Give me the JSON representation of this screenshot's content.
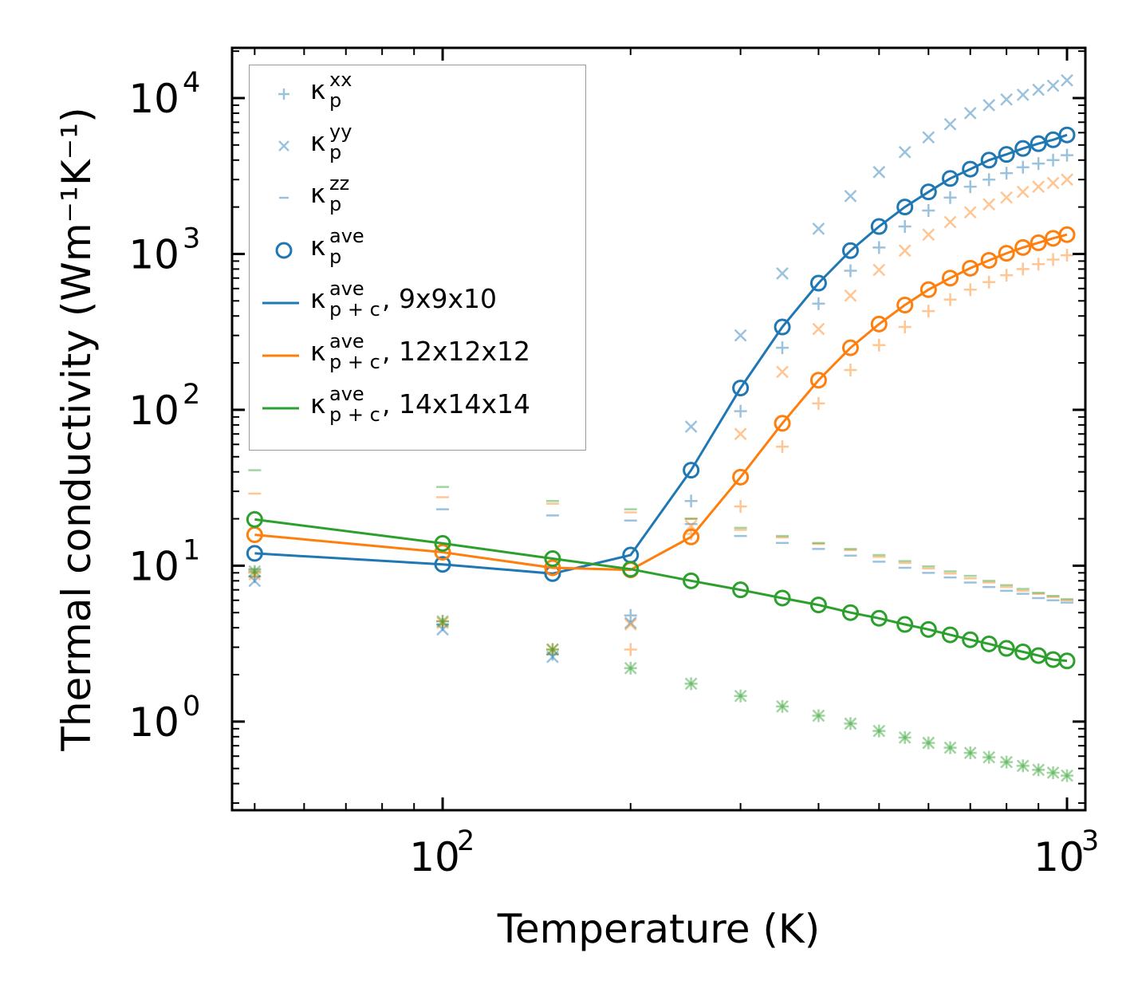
{
  "chart_data": {
    "type": "scatter",
    "xlabel": "Temperature (K)",
    "ylabel": "Thermal conductivity (Wm⁻¹K⁻¹)",
    "xscale": "log",
    "yscale": "log",
    "xlim": [
      46,
      1070
    ],
    "ylim": [
      0.27,
      21000
    ],
    "x_ticks": [
      {
        "value": 100,
        "label_base": "10",
        "label_exp": "2"
      },
      {
        "value": 1000,
        "label_base": "10",
        "label_exp": "3"
      }
    ],
    "y_ticks": [
      {
        "value": 1,
        "label_base": "10",
        "label_exp": "0"
      },
      {
        "value": 10,
        "label_base": "10",
        "label_exp": "1"
      },
      {
        "value": 100,
        "label_base": "10",
        "label_exp": "2"
      },
      {
        "value": 1000,
        "label_base": "10",
        "label_exp": "3"
      },
      {
        "value": 10000,
        "label_base": "10",
        "label_exp": "4"
      }
    ],
    "x": [
      50,
      100,
      150,
      200,
      250,
      300,
      350,
      400,
      450,
      500,
      550,
      600,
      650,
      700,
      750,
      800,
      850,
      900,
      950,
      1000
    ],
    "legend_position": "upper-left",
    "groups": [
      {
        "name": "9x9x10",
        "color": "#1f77b4",
        "kappa_xx": [
          8.5,
          4.2,
          2.7,
          4.8,
          26,
          98,
          250,
          480,
          780,
          1100,
          1500,
          1900,
          2300,
          2700,
          3000,
          3300,
          3600,
          3800,
          4000,
          4300
        ],
        "kappa_yy": [
          8.0,
          3.9,
          2.6,
          4.3,
          78,
          300,
          750,
          1450,
          2350,
          3350,
          4500,
          5600,
          6800,
          8000,
          9000,
          9800,
          10500,
          11300,
          12000,
          13000
        ],
        "kappa_zz": [
          9.5,
          23,
          21,
          19.5,
          18.5,
          15.5,
          14,
          12.8,
          11.6,
          10.6,
          9.7,
          9.0,
          8.4,
          7.8,
          7.3,
          6.9,
          6.6,
          6.2,
          6.0,
          5.8
        ],
        "kappa_ave": [
          12,
          10.2,
          8.9,
          11.7,
          41,
          138,
          340,
          650,
          1050,
          1500,
          2000,
          2500,
          3050,
          3500,
          4000,
          4350,
          4750,
          5100,
          5400,
          5800
        ],
        "kappa_pc_ave": [
          12,
          10.2,
          8.9,
          11.7,
          41,
          138,
          340,
          650,
          1050,
          1500,
          2000,
          2500,
          3050,
          3500,
          4000,
          4350,
          4750,
          5100,
          5400,
          5800
        ]
      },
      {
        "name": "12x12x12",
        "color": "#ff7f0e",
        "kappa_xx": [
          9.0,
          4.4,
          2.9,
          2.9,
          16,
          24,
          58,
          110,
          180,
          260,
          340,
          430,
          510,
          590,
          660,
          730,
          800,
          860,
          920,
          980
        ],
        "kappa_yy": [
          8.8,
          4.3,
          2.9,
          4.2,
          18,
          70,
          175,
          330,
          540,
          790,
          1050,
          1330,
          1600,
          1850,
          2080,
          2300,
          2500,
          2700,
          2850,
          3000
        ],
        "kappa_zz": [
          29,
          27.5,
          25,
          22,
          20,
          17,
          15.2,
          13.8,
          12.6,
          11.4,
          10.4,
          9.6,
          8.9,
          8.3,
          7.8,
          7.3,
          6.9,
          6.6,
          6.3,
          6.0
        ],
        "kappa_ave": [
          15.8,
          12.2,
          9.7,
          9.4,
          15.3,
          37,
          82,
          155,
          250,
          355,
          470,
          590,
          700,
          810,
          910,
          1010,
          1100,
          1180,
          1260,
          1330
        ],
        "kappa_pc_ave": [
          15.8,
          12.2,
          9.7,
          9.4,
          15.3,
          37,
          82,
          155,
          250,
          355,
          470,
          590,
          700,
          810,
          910,
          1010,
          1100,
          1180,
          1260,
          1330
        ]
      },
      {
        "name": "14x14x14",
        "color": "#2ca02c",
        "kappa_xx": [
          9.2,
          4.4,
          2.9,
          2.2,
          1.75,
          1.46,
          1.25,
          1.09,
          0.97,
          0.87,
          0.79,
          0.73,
          0.68,
          0.63,
          0.59,
          0.55,
          0.52,
          0.49,
          0.47,
          0.45
        ],
        "kappa_yy": [
          9.2,
          4.4,
          2.9,
          2.2,
          1.75,
          1.46,
          1.25,
          1.09,
          0.97,
          0.87,
          0.79,
          0.73,
          0.68,
          0.63,
          0.59,
          0.55,
          0.52,
          0.49,
          0.47,
          0.45
        ],
        "kappa_zz": [
          41,
          32,
          26,
          23,
          20,
          17.5,
          15.5,
          14,
          12.8,
          11.7,
          10.7,
          9.9,
          9.2,
          8.6,
          8.0,
          7.5,
          7.1,
          6.7,
          6.4,
          6.1
        ],
        "kappa_ave": [
          19.8,
          13.9,
          11.1,
          9.5,
          8.0,
          7.0,
          6.2,
          5.6,
          5.0,
          4.6,
          4.2,
          3.9,
          3.6,
          3.35,
          3.15,
          2.95,
          2.8,
          2.65,
          2.5,
          2.45
        ],
        "kappa_pc_ave": [
          19.8,
          13.9,
          11.1,
          9.5,
          8.0,
          7.0,
          6.2,
          5.6,
          5.0,
          4.6,
          4.2,
          3.9,
          3.6,
          3.35,
          3.15,
          2.95,
          2.8,
          2.65,
          2.5,
          2.45
        ]
      }
    ]
  },
  "legend": {
    "kappa": "κ",
    "entries": [
      {
        "sup": "xx",
        "sub": "p",
        "rest": ""
      },
      {
        "sup": "yy",
        "sub": "p",
        "rest": ""
      },
      {
        "sup": "zz",
        "sub": "p",
        "rest": ""
      },
      {
        "sup": "ave",
        "sub": "p",
        "rest": ""
      },
      {
        "sup": "ave",
        "sub": "p + c",
        "rest": ", 9x9x10"
      },
      {
        "sup": "ave",
        "sub": "p + c",
        "rest": ", 12x12x12"
      },
      {
        "sup": "ave",
        "sub": "p + c",
        "rest": ", 14x14x14"
      }
    ]
  },
  "colors": {
    "xx_yy_zz_legend": "#1f77b4",
    "axis": "#000000"
  }
}
